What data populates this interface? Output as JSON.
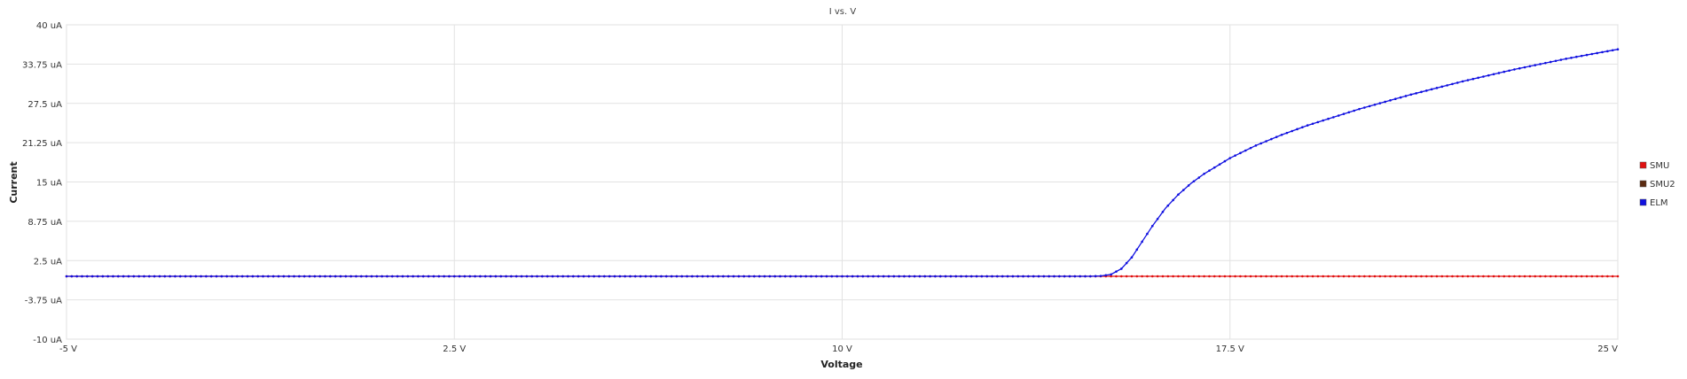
{
  "chart_data": {
    "type": "line",
    "title": "I vs. V",
    "xlabel": "Voltage",
    "ylabel": "Current",
    "xlim": [
      -5,
      25
    ],
    "ylim": [
      -10,
      40
    ],
    "x_ticks": [
      -5,
      2.5,
      10,
      17.5,
      25
    ],
    "x_tick_labels": [
      "-5 V",
      "2.5 V",
      "10 V",
      "17.5 V",
      "25 V"
    ],
    "y_ticks": [
      40,
      33.75,
      27.5,
      21.25,
      15,
      8.75,
      2.5,
      -3.75,
      -10
    ],
    "y_tick_labels": [
      "40 uA",
      "33.75 uA",
      "27.5 uA",
      "21.25 uA",
      "15 uA",
      "8.75 uA",
      "2.5 uA",
      "-3.75 uA",
      "-10 uA"
    ],
    "grid": true,
    "legend_position": "right",
    "series": [
      {
        "name": "SMU",
        "color": "#e01010",
        "x": [
          -5,
          0,
          5,
          10,
          15,
          15.2,
          15.5,
          16,
          17,
          18,
          19,
          20,
          21,
          22,
          23,
          24,
          25
        ],
        "y": [
          0,
          0,
          0,
          0,
          0,
          0,
          0,
          0,
          0,
          0,
          0,
          0,
          0,
          0,
          0,
          0,
          0
        ]
      },
      {
        "name": "SMU2",
        "color": "#5a2a10",
        "x": [],
        "y": []
      },
      {
        "name": "ELM",
        "color": "#1010e0",
        "x": [
          -5,
          0,
          5,
          10,
          14.8,
          15,
          15.2,
          15.4,
          15.6,
          15.8,
          16,
          16.25,
          16.5,
          16.75,
          17,
          17.5,
          18,
          18.5,
          19,
          20,
          21,
          22,
          23,
          24,
          25
        ],
        "y": [
          0,
          0,
          0,
          0,
          0,
          0.05,
          0.3,
          1.2,
          3.0,
          5.5,
          8.0,
          10.8,
          13.0,
          14.8,
          16.3,
          18.8,
          20.8,
          22.5,
          24.0,
          26.6,
          28.9,
          31.0,
          32.9,
          34.6,
          36.1
        ]
      }
    ]
  }
}
